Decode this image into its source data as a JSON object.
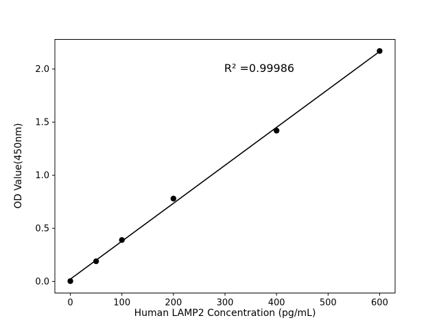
{
  "chart_data": {
    "type": "scatter",
    "x": [
      0,
      50,
      100,
      200,
      400,
      600
    ],
    "y": [
      0.003,
      0.19,
      0.39,
      0.78,
      1.42,
      2.17
    ],
    "fit_line": true,
    "annotation": "R² =0.99986",
    "xlabel": "Human LAMP2 Concentration (pg/mL)",
    "ylabel": "OD Value(450nm)",
    "xlim": [
      -30,
      630
    ],
    "ylim": [
      -0.109,
      2.279
    ],
    "xticks": [
      0,
      100,
      200,
      300,
      400,
      500,
      600
    ],
    "xtick_labels": [
      "0",
      "100",
      "200",
      "300",
      "400",
      "500",
      "600"
    ],
    "yticks": [
      0.0,
      0.5,
      1.0,
      1.5,
      2.0
    ],
    "ytick_labels": [
      "0.0",
      "0.5",
      "1.0",
      "1.5",
      "2.0"
    ],
    "grid": false,
    "legend": "none",
    "marker_color": "#000000",
    "line_color": "#000000",
    "background": "#ffffff"
  }
}
